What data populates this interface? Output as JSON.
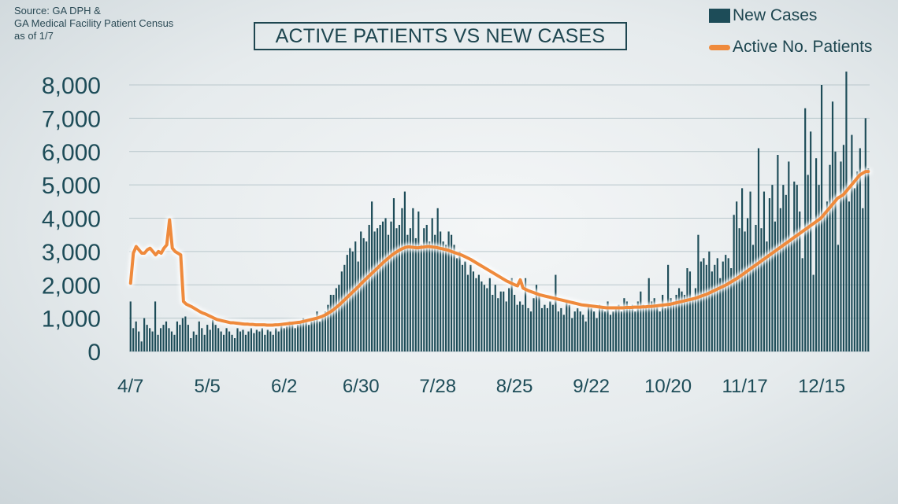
{
  "source": {
    "line1": "Source: GA DPH &",
    "line2": "GA Medical Facility Patient Census",
    "line3": "as of  1/7"
  },
  "legend": {
    "new_cases": "New Cases",
    "active_patients": "Active No. Patients"
  },
  "colors": {
    "bars": "#1d4c58",
    "line": "#ef8a3c",
    "text": "#1d4c58",
    "grid": "#b9c7cc"
  },
  "chart_data": {
    "type": "bar",
    "title": "ACTIVE PATIENTS VS NEW CASES",
    "ylim": [
      0,
      8000
    ],
    "y_ticks": [
      "0",
      "1,000",
      "2,000",
      "3,000",
      "4,000",
      "5,000",
      "6,000",
      "7,000",
      "8,000"
    ],
    "x_ticks": [
      "4/7",
      "5/5",
      "6/2",
      "6/30",
      "7/28",
      "8/25",
      "9/22",
      "10/20",
      "11/17",
      "12/15"
    ],
    "grid": true,
    "legend_position": "top-right",
    "series": [
      {
        "name": "New Cases",
        "kind": "bar",
        "values": [
          1500,
          700,
          900,
          600,
          300,
          1000,
          800,
          700,
          600,
          1500,
          500,
          700,
          800,
          900,
          700,
          600,
          500,
          900,
          800,
          1000,
          1050,
          800,
          400,
          600,
          500,
          900,
          700,
          500,
          800,
          650,
          950,
          800,
          700,
          600,
          500,
          700,
          600,
          500,
          400,
          700,
          600,
          650,
          500,
          600,
          700,
          550,
          650,
          600,
          700,
          500,
          650,
          600,
          500,
          700,
          600,
          800,
          700,
          750,
          900,
          800,
          700,
          800,
          900,
          1000,
          900,
          800,
          900,
          1000,
          1200,
          900,
          1000,
          1200,
          1400,
          1700,
          1700,
          1900,
          2000,
          2400,
          2600,
          2900,
          3100,
          3000,
          3300,
          2700,
          3600,
          3400,
          3300,
          3800,
          4500,
          3600,
          3700,
          3800,
          3900,
          4000,
          3500,
          3900,
          4600,
          3700,
          3800,
          4300,
          4800,
          3500,
          3700,
          4300,
          3400,
          4200,
          3200,
          3700,
          3800,
          3300,
          4000,
          3500,
          4300,
          3600,
          3300,
          3200,
          3600,
          3500,
          3200,
          2800,
          3000,
          2600,
          2700,
          2300,
          2600,
          2400,
          2200,
          2300,
          2100,
          2000,
          1900,
          2200,
          1700,
          2000,
          1600,
          1800,
          1800,
          1500,
          1900,
          2200,
          1700,
          1400,
          1500,
          1400,
          2200,
          1300,
          1200,
          1600,
          2000,
          1700,
          1300,
          1400,
          1300,
          1500,
          1400,
          2300,
          1200,
          1300,
          1100,
          1500,
          1400,
          1000,
          1200,
          1300,
          1200,
          1100,
          900,
          1400,
          1300,
          1200,
          1000,
          1400,
          1300,
          1200,
          1500,
          1100,
          1200,
          1300,
          1400,
          1200,
          1600,
          1500,
          1300,
          1400,
          1200,
          1500,
          1800,
          1400,
          1300,
          2200,
          1500,
          1600,
          1400,
          1200,
          1700,
          1300,
          2600,
          1600,
          1500,
          1700,
          1900,
          1800,
          1700,
          2500,
          2400,
          1600,
          1900,
          3500,
          2700,
          2800,
          2600,
          3000,
          2400,
          2600,
          2800,
          2200,
          2700,
          2900,
          2800,
          2500,
          4100,
          4500,
          3700,
          4900,
          3600,
          4000,
          4800,
          3200,
          3800,
          6100,
          3700,
          4800,
          3300,
          4600,
          5000,
          3900,
          5900,
          4300,
          5000,
          4700,
          5700,
          3400,
          5100,
          5000,
          4200,
          2800,
          7300,
          5300,
          6600,
          2300,
          5800,
          5000,
          8000,
          4200,
          4500,
          5600,
          7500,
          6000,
          3200,
          5700,
          6200,
          8400,
          4500,
          6500,
          4900,
          5400,
          6100,
          4300,
          7000,
          5500
        ]
      },
      {
        "name": "Active No. Patients",
        "kind": "line",
        "values": [
          2050,
          2950,
          3150,
          3050,
          2950,
          2950,
          3050,
          3100,
          3000,
          2900,
          3000,
          2950,
          3100,
          3200,
          3950,
          3100,
          3000,
          2950,
          2900,
          1500,
          1420,
          1380,
          1340,
          1290,
          1240,
          1190,
          1150,
          1120,
          1080,
          1040,
          1000,
          960,
          940,
          920,
          900,
          880,
          860,
          860,
          850,
          840,
          830,
          820,
          820,
          810,
          810,
          800,
          800,
          800,
          800,
          790,
          790,
          790,
          800,
          800,
          810,
          820,
          830,
          840,
          850,
          860,
          870,
          880,
          900,
          920,
          940,
          960,
          980,
          1000,
          1030,
          1060,
          1100,
          1150,
          1200,
          1260,
          1330,
          1400,
          1480,
          1560,
          1640,
          1720,
          1800,
          1880,
          1960,
          2050,
          2130,
          2210,
          2290,
          2370,
          2450,
          2530,
          2610,
          2690,
          2760,
          2830,
          2900,
          2960,
          3010,
          3060,
          3100,
          3130,
          3140,
          3130,
          3120,
          3110,
          3120,
          3130,
          3140,
          3150,
          3140,
          3130,
          3120,
          3100,
          3080,
          3060,
          3040,
          3010,
          2980,
          2950,
          2920,
          2890,
          2850,
          2810,
          2770,
          2720,
          2670,
          2620,
          2570,
          2520,
          2470,
          2420,
          2370,
          2320,
          2270,
          2220,
          2170,
          2120,
          2080,
          2040,
          2000,
          1970,
          2150,
          1900,
          1860,
          1820,
          1790,
          1760,
          1730,
          1700,
          1680,
          1660,
          1640,
          1620,
          1600,
          1580,
          1560,
          1540,
          1520,
          1500,
          1480,
          1460,
          1440,
          1420,
          1400,
          1390,
          1380,
          1370,
          1360,
          1350,
          1340,
          1330,
          1320,
          1310,
          1310,
          1310,
          1310,
          1310,
          1310,
          1310,
          1320,
          1320,
          1320,
          1330,
          1330,
          1330,
          1340,
          1340,
          1350,
          1350,
          1360,
          1370,
          1380,
          1390,
          1400,
          1410,
          1420,
          1440,
          1460,
          1480,
          1500,
          1520,
          1540,
          1560,
          1580,
          1600,
          1630,
          1660,
          1690,
          1720,
          1760,
          1800,
          1840,
          1880,
          1920,
          1960,
          2000,
          2050,
          2100,
          2150,
          2200,
          2260,
          2320,
          2380,
          2440,
          2500,
          2560,
          2620,
          2680,
          2740,
          2800,
          2860,
          2920,
          2980,
          3040,
          3100,
          3160,
          3220,
          3280,
          3340,
          3400,
          3460,
          3520,
          3580,
          3640,
          3700,
          3760,
          3820,
          3880,
          3940,
          4000,
          4100,
          4200,
          4300,
          4400,
          4500,
          4600,
          4650,
          4700,
          4800,
          4900,
          5000,
          5100,
          5200,
          5300,
          5350,
          5400,
          5400
        ]
      }
    ]
  }
}
